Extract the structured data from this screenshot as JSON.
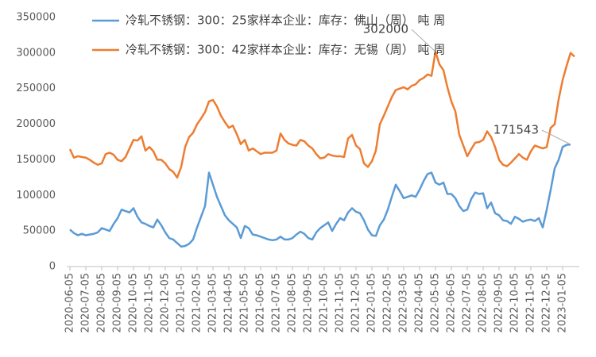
{
  "chart_data": {
    "type": "line",
    "categories": [
      "2020-06-05",
      null,
      null,
      null,
      "2020-07-05",
      null,
      null,
      null,
      "2020-08-05",
      null,
      null,
      null,
      "2020-09-05",
      null,
      null,
      null,
      "2020-10-05",
      null,
      null,
      null,
      "2020-11-05",
      null,
      null,
      null,
      "2020-12-05",
      null,
      null,
      null,
      "2021-01-05",
      null,
      null,
      null,
      "2021-02-05",
      null,
      null,
      null,
      "2021-03-05",
      null,
      null,
      null,
      "2021-04-05",
      null,
      null,
      null,
      "2021-05-05",
      null,
      null,
      null,
      "2021-06-05",
      null,
      null,
      null,
      "2021-07-05",
      null,
      null,
      null,
      "2021-08-05",
      null,
      null,
      null,
      "2021-09-05",
      null,
      null,
      null,
      "2021-10-05",
      null,
      null,
      null,
      "2021-11-05",
      null,
      null,
      null,
      "2021-12-05",
      null,
      null,
      null,
      "2022-01-05",
      null,
      null,
      null,
      "2022-02-05",
      null,
      null,
      null,
      "2022-03-05",
      null,
      null,
      null,
      "2022-04-05",
      null,
      null,
      null,
      "2022-05-05",
      null,
      null,
      null,
      "2022-06-05",
      null,
      null,
      null,
      "2022-07-05",
      null,
      null,
      null,
      "2022-08-05",
      null,
      null,
      null,
      "2022-09-05",
      null,
      null,
      null,
      "2022-10-05",
      null,
      null,
      null,
      "2022-11-05",
      null,
      null,
      null,
      "2022-12-05",
      null,
      null,
      null,
      "2023-01-05",
      null,
      null,
      null
    ],
    "series": [
      {
        "name": "冷轧不锈钢：300：25家样本企业：库存：佛山（周） 吨 周",
        "color": "#5b9bd5",
        "values": [
          52000,
          47000,
          44000,
          46000,
          44000,
          45000,
          46000,
          48000,
          54000,
          52000,
          50000,
          60000,
          68000,
          80000,
          78000,
          76000,
          82000,
          70000,
          62000,
          60000,
          57000,
          55000,
          66000,
          58000,
          48000,
          40000,
          38000,
          33000,
          28000,
          29000,
          32000,
          38000,
          55000,
          70000,
          85000,
          132000,
          115000,
          98000,
          85000,
          72000,
          65000,
          60000,
          55000,
          40000,
          57000,
          54000,
          45000,
          44000,
          42000,
          40000,
          38000,
          37000,
          38000,
          42000,
          38000,
          38000,
          40000,
          45000,
          49000,
          46000,
          40000,
          38000,
          48000,
          54000,
          58000,
          62000,
          50000,
          60000,
          68000,
          65000,
          76000,
          82000,
          77000,
          75000,
          65000,
          52000,
          44000,
          43000,
          58000,
          66000,
          80000,
          98000,
          115000,
          106000,
          96000,
          98000,
          100000,
          98000,
          108000,
          120000,
          130000,
          132000,
          118000,
          115000,
          118000,
          102000,
          102000,
          96000,
          85000,
          78000,
          80000,
          95000,
          104000,
          102000,
          103000,
          82000,
          90000,
          75000,
          72000,
          65000,
          64000,
          60000,
          70000,
          67000,
          63000,
          65000,
          66000,
          64000,
          68000,
          55000,
          80000,
          108000,
          138000,
          150000,
          168000,
          171000,
          171543,
          null
        ]
      },
      {
        "name": "冷轧不锈钢：300：42家样本企业：库存：无锡（周） 吨 周",
        "color": "#ed7d31",
        "values": [
          165000,
          153000,
          155000,
          154000,
          153000,
          150000,
          146000,
          143000,
          145000,
          158000,
          160000,
          157000,
          150000,
          148000,
          154000,
          166000,
          178000,
          177000,
          183000,
          163000,
          168000,
          162000,
          150000,
          150000,
          145000,
          137000,
          133000,
          125000,
          140000,
          168000,
          182000,
          188000,
          200000,
          208000,
          217000,
          232000,
          234000,
          225000,
          212000,
          203000,
          195000,
          198000,
          186000,
          172000,
          178000,
          163000,
          166000,
          162000,
          158000,
          160000,
          160000,
          160000,
          163000,
          187000,
          178000,
          173000,
          171000,
          170000,
          178000,
          176000,
          170000,
          166000,
          158000,
          152000,
          153000,
          158000,
          156000,
          155000,
          155000,
          154000,
          180000,
          185000,
          170000,
          165000,
          145000,
          140000,
          148000,
          163000,
          200000,
          212000,
          225000,
          238000,
          248000,
          250000,
          252000,
          249000,
          254000,
          256000,
          262000,
          265000,
          270000,
          268000,
          302000,
          284000,
          276000,
          252000,
          232000,
          218000,
          185000,
          170000,
          155000,
          165000,
          174000,
          175000,
          178000,
          190000,
          182000,
          168000,
          150000,
          143000,
          141000,
          146000,
          152000,
          158000,
          153000,
          150000,
          162000,
          170000,
          168000,
          166000,
          168000,
          195000,
          200000,
          235000,
          262000,
          282000,
          300121,
          295000
        ]
      }
    ],
    "ylim": [
      0,
      350000
    ],
    "yticks": [
      0,
      50000,
      100000,
      150000,
      200000,
      250000,
      300000,
      350000
    ],
    "grid": false
  }
}
